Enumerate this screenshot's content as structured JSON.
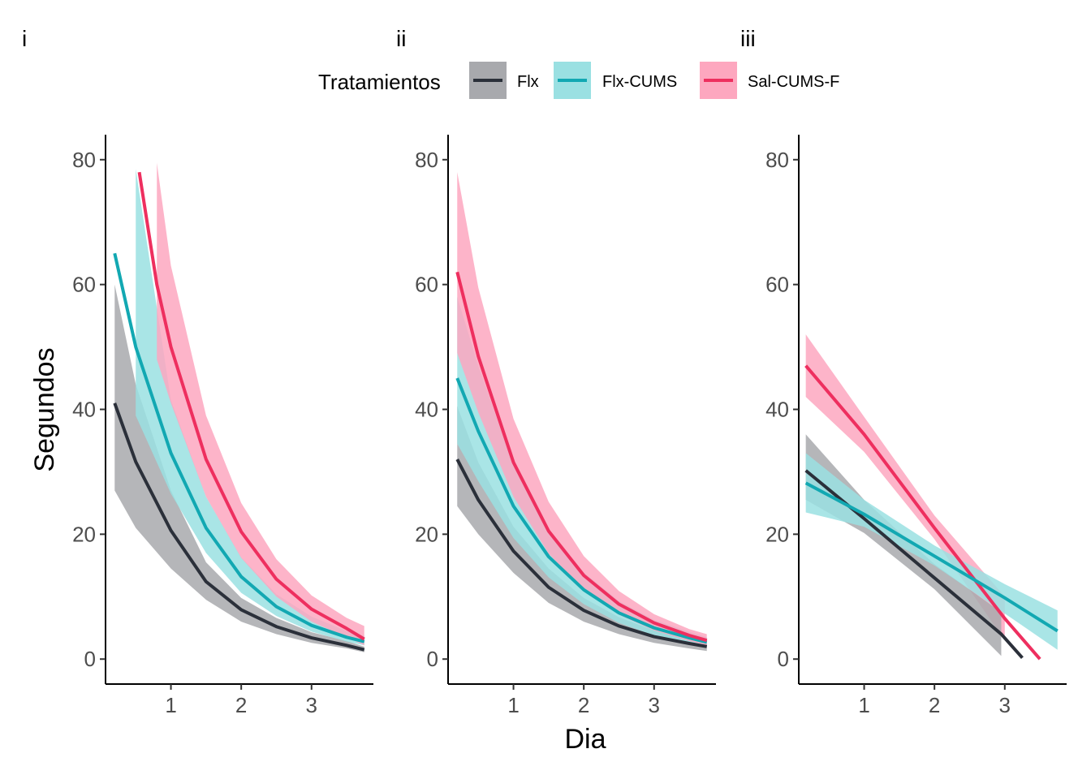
{
  "legend": {
    "title": "Tratamientos",
    "items": [
      {
        "key": "flx",
        "label": "Flx",
        "line_color": "#2b303a",
        "band_color": "#a8a9ad"
      },
      {
        "key": "flxcums",
        "label": "Flx-CUMS",
        "line_color": "#12a8b2",
        "band_color": "#9ae0e2"
      },
      {
        "key": "salcums",
        "label": "Sal-CUMS-F",
        "line_color": "#ee2f5f",
        "band_color": "#fda7bf"
      }
    ]
  },
  "axes": {
    "xlabel": "Dia",
    "ylabel": "Segundos"
  },
  "chart_data": [
    {
      "type": "line",
      "tag": "i",
      "title": "",
      "xlabel": "Dia",
      "ylabel": "Segundos",
      "xlim": [
        0.07,
        3.88
      ],
      "ylim": [
        -4,
        84
      ],
      "x_ticks": [
        1,
        2,
        3
      ],
      "y_ticks": [
        0,
        20,
        40,
        60,
        80
      ],
      "series": [
        {
          "key": "flx",
          "x": [
            0.2,
            0.5,
            1.0,
            1.5,
            2.0,
            2.5,
            3.0,
            3.5,
            3.75
          ],
          "y": [
            41,
            31.6,
            20.6,
            12.4,
            7.9,
            5.2,
            3.4,
            2.2,
            1.5
          ],
          "lower": [
            27,
            21,
            14.5,
            9.5,
            6.0,
            4.0,
            2.6,
            1.7,
            1.1
          ],
          "upper": [
            60,
            44,
            27,
            15.5,
            9.8,
            6.6,
            4.3,
            2.9,
            2.0
          ]
        },
        {
          "key": "flxcums",
          "x": [
            0.2,
            0.5,
            1.0,
            1.5,
            2.0,
            2.5,
            3.0,
            3.5,
            3.75
          ],
          "y": [
            65,
            50,
            33,
            21,
            13.2,
            8.4,
            5.4,
            3.5,
            2.8
          ],
          "lower": [
            null,
            39,
            26.5,
            17,
            10.6,
            6.9,
            4.4,
            2.8,
            2.2
          ],
          "upper": [
            null,
            78.5,
            41.5,
            26,
            16.3,
            10.4,
            6.8,
            4.5,
            3.7
          ]
        },
        {
          "key": "salcums",
          "x": [
            0.55,
            0.8,
            1.0,
            1.5,
            2.0,
            2.5,
            3.0,
            3.5,
            3.75
          ],
          "y": [
            78,
            60,
            50,
            32,
            20.4,
            12.8,
            8,
            4.9,
            3.2
          ],
          "lower": [
            null,
            48,
            41,
            26,
            16.2,
            10.0,
            6.0,
            3.5,
            2.2
          ],
          "upper": [
            null,
            79.5,
            63,
            39,
            25,
            16,
            10.2,
            6.6,
            5.3
          ]
        }
      ]
    },
    {
      "type": "line",
      "tag": "ii",
      "title": "",
      "xlabel": "Dia",
      "ylabel": "Segundos",
      "xlim": [
        0.07,
        3.88
      ],
      "ylim": [
        -4,
        84
      ],
      "x_ticks": [
        1,
        2,
        3
      ],
      "y_ticks": [
        0,
        20,
        40,
        60,
        80
      ],
      "series": [
        {
          "key": "flx",
          "x": [
            0.2,
            0.5,
            1.0,
            1.5,
            2.0,
            2.5,
            3.0,
            3.5,
            3.75
          ],
          "y": [
            32,
            25.5,
            17.3,
            11.5,
            7.8,
            5.3,
            3.6,
            2.5,
            2.0
          ],
          "lower": [
            24.5,
            20,
            13.8,
            9.0,
            6.0,
            4.0,
            2.6,
            1.7,
            1.3
          ],
          "upper": [
            40.5,
            31.5,
            21.2,
            14.5,
            9.8,
            6.7,
            4.6,
            3.2,
            2.6
          ]
        },
        {
          "key": "flxcums",
          "x": [
            0.2,
            0.5,
            1.0,
            1.5,
            2.0,
            2.5,
            3.0,
            3.5,
            3.75
          ],
          "y": [
            45,
            36.5,
            24.5,
            16.4,
            11.1,
            7.4,
            5.0,
            3.4,
            2.7
          ],
          "lower": [
            34.5,
            28.5,
            19.4,
            13.1,
            8.8,
            5.8,
            3.8,
            2.5,
            2.0
          ],
          "upper": [
            58,
            47,
            31,
            20.6,
            13.9,
            9.3,
            6.3,
            4.4,
            3.5
          ]
        },
        {
          "key": "salcums",
          "x": [
            0.2,
            0.5,
            1.0,
            1.5,
            2.0,
            2.5,
            3.0,
            3.5,
            3.75
          ],
          "y": [
            62,
            48.5,
            31.5,
            20.5,
            13.4,
            8.8,
            5.8,
            3.8,
            3.0
          ],
          "lower": [
            49,
            39.5,
            26,
            16.9,
            11.0,
            7.1,
            4.6,
            2.9,
            2.2
          ],
          "upper": [
            78,
            59.5,
            38.5,
            25.2,
            16.5,
            10.9,
            7.2,
            4.8,
            4.0
          ]
        }
      ]
    },
    {
      "type": "line",
      "tag": "iii",
      "title": "",
      "xlabel": "Dia",
      "ylabel": "Segundos",
      "xlim": [
        0.07,
        3.88
      ],
      "ylim": [
        -4,
        84
      ],
      "x_ticks": [
        1,
        2,
        3
      ],
      "y_ticks": [
        0,
        20,
        40,
        60,
        80
      ],
      "series": [
        {
          "key": "salcums",
          "x": [
            0.17,
            1.0,
            2.0,
            3.0,
            3.5
          ],
          "y": [
            47,
            36,
            21,
            6.5,
            0
          ],
          "lower": [
            42,
            33.2,
            19.2,
            3.0,
            null
          ],
          "upper": [
            52,
            38.8,
            23,
            10.0,
            null
          ]
        },
        {
          "key": "flx",
          "x": [
            0.17,
            1.0,
            2.0,
            2.95,
            3.25
          ],
          "y": [
            30.2,
            22.5,
            13,
            4.0,
            0.2
          ],
          "lower": [
            25.5,
            20.2,
            11.2,
            0.5,
            null
          ],
          "upper": [
            36,
            25.5,
            15.2,
            7.5,
            null
          ]
        },
        {
          "key": "flxcums",
          "x": [
            0.17,
            1.0,
            2.0,
            3.0,
            3.75
          ],
          "y": [
            28.2,
            23.2,
            16.5,
            9.8,
            4.5
          ],
          "lower": [
            23.5,
            21.2,
            15.0,
            7.3,
            1.5
          ],
          "upper": [
            33,
            25.5,
            18.2,
            12.0,
            7.8
          ]
        }
      ]
    }
  ]
}
